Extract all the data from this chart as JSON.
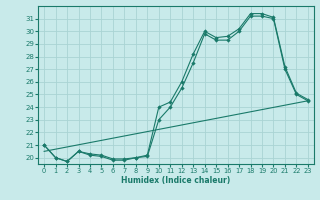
{
  "xlabel": "Humidex (Indice chaleur)",
  "ylabel": "",
  "bg_color": "#c8eaea",
  "grid_color": "#aad4d4",
  "line_color": "#1a7a6a",
  "xlim": [
    -0.5,
    23.5
  ],
  "ylim": [
    19.5,
    32.0
  ],
  "xticks": [
    0,
    1,
    2,
    3,
    4,
    5,
    6,
    7,
    8,
    9,
    10,
    11,
    12,
    13,
    14,
    15,
    16,
    17,
    18,
    19,
    20,
    21,
    22,
    23
  ],
  "yticks": [
    20,
    21,
    22,
    23,
    24,
    25,
    26,
    27,
    28,
    29,
    30,
    31
  ],
  "line1": {
    "x": [
      0,
      1,
      2,
      3,
      4,
      5,
      6,
      7,
      8,
      9,
      10,
      11,
      12,
      13,
      14,
      15,
      16,
      17,
      18,
      19,
      20,
      21,
      22,
      23
    ],
    "y": [
      21.0,
      20.0,
      19.7,
      20.5,
      20.2,
      20.1,
      19.8,
      19.8,
      20.0,
      20.1,
      23.0,
      24.0,
      25.5,
      27.5,
      29.8,
      29.3,
      29.3,
      30.0,
      31.2,
      31.2,
      31.0,
      27.0,
      25.0,
      24.5
    ]
  },
  "line2": {
    "x": [
      0,
      1,
      2,
      3,
      4,
      5,
      6,
      7,
      8,
      9,
      10,
      11,
      12,
      13,
      14,
      15,
      16,
      17,
      18,
      19,
      20,
      21,
      22,
      23
    ],
    "y": [
      21.0,
      20.0,
      19.7,
      20.5,
      20.3,
      20.2,
      19.9,
      19.9,
      20.0,
      20.2,
      24.0,
      24.4,
      26.0,
      28.2,
      30.0,
      29.5,
      29.6,
      30.2,
      31.4,
      31.4,
      31.1,
      27.2,
      25.1,
      24.6
    ]
  },
  "line3": {
    "x": [
      0,
      23
    ],
    "y": [
      20.5,
      24.5
    ]
  }
}
